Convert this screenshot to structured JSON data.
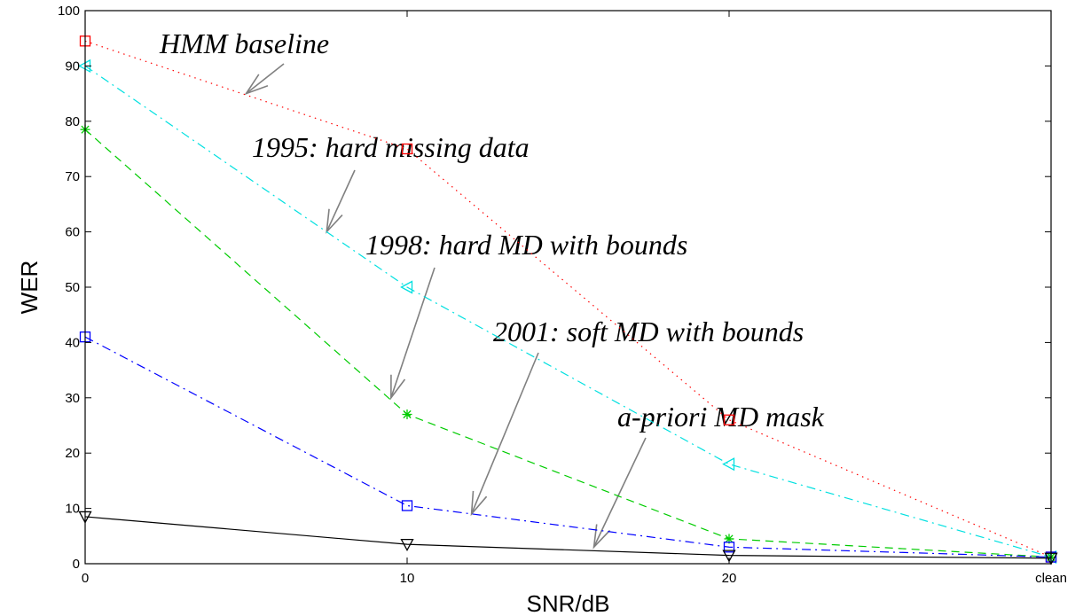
{
  "chart_data": {
    "type": "line",
    "xlabel": "SNR/dB",
    "ylabel": "WER",
    "x_categories": [
      "0",
      "10",
      "20",
      "clean"
    ],
    "ylim": [
      0,
      100
    ],
    "y_ticks": [
      "0",
      "10",
      "20",
      "30",
      "40",
      "50",
      "60",
      "70",
      "80",
      "90",
      "100"
    ],
    "grid": false,
    "series": [
      {
        "values": [
          94.5,
          75,
          26,
          1.2
        ],
        "color": "#ff0000",
        "line": "dotted",
        "marker": "square"
      },
      {
        "values": [
          90,
          50,
          18,
          1.2
        ],
        "color": "#00e0e0",
        "line": "dashdot",
        "marker": "triangle-left"
      },
      {
        "values": [
          78.5,
          27,
          4.5,
          1.2
        ],
        "color": "#00cc00",
        "line": "dashed",
        "marker": "asterisk"
      },
      {
        "values": [
          41,
          10.5,
          3,
          1.2
        ],
        "color": "#0000ff",
        "line": "dashdot",
        "marker": "square"
      },
      {
        "values": [
          8.5,
          3.5,
          1.5,
          1
        ],
        "color": "#000000",
        "line": "solid",
        "marker": "triangle-down"
      }
    ],
    "annotations": [
      {
        "text": "HMM baseline",
        "arrow_to": [
          5,
          85
        ]
      },
      {
        "text": "1995: hard missing data",
        "arrow_to": [
          7.5,
          60
        ]
      },
      {
        "text": "1998: hard MD with bounds",
        "arrow_to": [
          9.5,
          30
        ]
      },
      {
        "text": "2001: soft MD with bounds",
        "arrow_to": [
          12,
          9
        ]
      },
      {
        "text": "a-priori MD mask",
        "arrow_to": [
          15.8,
          3
        ]
      }
    ]
  }
}
